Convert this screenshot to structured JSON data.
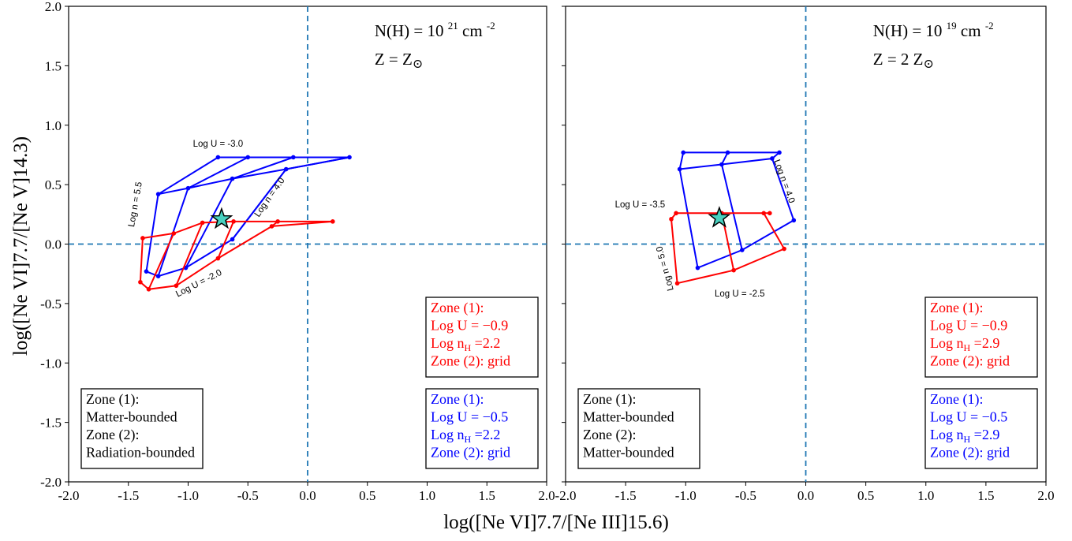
{
  "chart_data": [
    {
      "type": "line",
      "xlabel": "log([Ne VI]7.7/[Ne III]15.6)",
      "ylabel": "log([Ne VI]7.7/[Ne V]14.3)",
      "xlim": [
        -2.0,
        2.0
      ],
      "ylim": [
        -2.0,
        2.0
      ],
      "xticks": [
        -2.0,
        -1.5,
        -1.0,
        -0.5,
        0.0,
        0.5,
        1.0,
        1.5,
        2.0
      ],
      "yticks": [
        -2.0,
        -1.5,
        -1.0,
        -0.5,
        0.0,
        0.5,
        1.0,
        1.5,
        2.0
      ],
      "xtick_labels": [
        "-2.0",
        "-1.5",
        "-1.0",
        "-0.5",
        "0.0",
        "0.5",
        "1.0",
        "1.5",
        "2.0"
      ],
      "ytick_labels": [
        "-2.0",
        "-1.5",
        "-1.0",
        "-0.5",
        "0.0",
        "0.5",
        "1.0",
        "1.5",
        "2.0"
      ],
      "reference_lines": {
        "x": 0.0,
        "y": 0.0,
        "style": "dashed",
        "color": "#1f77b4"
      },
      "header": {
        "nh_prefix": "N(H) = 10",
        "nh_exp": "21",
        "nh_unit": "cm",
        "nh_unit_exp": "-2",
        "z_text": "Z = Z",
        "z_symbol": "⊙"
      },
      "series": [
        {
          "color": "#0000ff",
          "points": [
            [
              -0.75,
              0.73
            ],
            [
              -0.5,
              0.73
            ],
            [
              -0.12,
              0.73
            ],
            [
              0.35,
              0.73
            ],
            [
              -1.25,
              0.42
            ],
            [
              -1.0,
              0.47
            ],
            [
              -0.63,
              0.55
            ],
            [
              -0.18,
              0.63
            ],
            [
              -1.35,
              -0.23
            ],
            [
              -1.25,
              -0.27
            ],
            [
              -1.02,
              -0.2
            ],
            [
              -0.63,
              0.04
            ]
          ],
          "rows": [
            [
              [
                -0.75,
                0.73
              ],
              [
                -0.5,
                0.73
              ],
              [
                -0.12,
                0.73
              ],
              [
                0.35,
                0.73
              ]
            ],
            [
              [
                -1.25,
                0.42
              ],
              [
                -1.0,
                0.47
              ],
              [
                -0.63,
                0.55
              ],
              [
                -0.18,
                0.63
              ],
              [
                0.35,
                0.73
              ]
            ],
            [
              [
                -1.35,
                -0.23
              ],
              [
                -1.25,
                -0.27
              ],
              [
                -1.02,
                -0.2
              ],
              [
                -0.63,
                0.04
              ],
              [
                -0.18,
                0.63
              ]
            ]
          ],
          "cols": [
            [
              [
                -1.35,
                -0.23
              ],
              [
                -1.25,
                0.42
              ],
              [
                -0.75,
                0.73
              ]
            ],
            [
              [
                -1.25,
                -0.27
              ],
              [
                -1.0,
                0.47
              ],
              [
                -0.5,
                0.73
              ]
            ],
            [
              [
                -1.02,
                -0.2
              ],
              [
                -0.63,
                0.55
              ],
              [
                -0.12,
                0.73
              ]
            ],
            [
              [
                -0.63,
                0.04
              ],
              [
                -0.18,
                0.63
              ],
              [
                0.35,
                0.73
              ]
            ]
          ]
        },
        {
          "color": "#ff0000",
          "points": [
            [
              -1.38,
              0.05
            ],
            [
              -1.12,
              0.09
            ],
            [
              -0.88,
              0.18
            ],
            [
              -0.62,
              0.19
            ],
            [
              -0.25,
              0.19
            ],
            [
              0.21,
              0.19
            ],
            [
              -1.4,
              -0.32
            ],
            [
              -1.33,
              -0.38
            ],
            [
              -1.1,
              -0.35
            ],
            [
              -0.75,
              -0.12
            ],
            [
              -0.3,
              0.15
            ]
          ],
          "rows": [
            [
              [
                -1.38,
                0.05
              ],
              [
                -1.12,
                0.09
              ],
              [
                -0.88,
                0.18
              ],
              [
                -0.62,
                0.19
              ],
              [
                -0.25,
                0.19
              ],
              [
                0.21,
                0.19
              ]
            ],
            [
              [
                -1.4,
                -0.32
              ],
              [
                -1.33,
                -0.38
              ],
              [
                -1.1,
                -0.35
              ],
              [
                -0.75,
                -0.12
              ],
              [
                -0.3,
                0.15
              ],
              [
                0.21,
                0.19
              ]
            ]
          ],
          "cols": [
            [
              [
                -1.4,
                -0.32
              ],
              [
                -1.38,
                0.05
              ]
            ],
            [
              [
                -1.33,
                -0.38
              ],
              [
                -1.12,
                0.09
              ]
            ],
            [
              [
                -1.1,
                -0.35
              ],
              [
                -0.88,
                0.18
              ]
            ],
            [
              [
                -0.75,
                -0.12
              ],
              [
                -0.62,
                0.19
              ]
            ],
            [
              [
                -0.3,
                0.15
              ],
              [
                -0.25,
                0.19
              ]
            ]
          ]
        }
      ],
      "star": {
        "x": -0.72,
        "y": 0.21,
        "color": "#48d1c0"
      },
      "annotations": [
        {
          "text": "Log U = -3.0",
          "x": -0.75,
          "y": 0.82,
          "rotate": 0
        },
        {
          "text": "Log U = -2.0",
          "x": -0.9,
          "y": -0.35,
          "rotate": -27
        },
        {
          "text": "Log n  = 5.5",
          "x": -1.42,
          "y": 0.33,
          "rotate": -80
        },
        {
          "text": "Log n = 4.0",
          "x": -0.3,
          "y": 0.38,
          "rotate": -55
        }
      ],
      "legend_boxes": [
        {
          "position": "lower-left",
          "color": "#000000",
          "lines": [
            "Zone (1):",
            "Matter-bounded",
            "Zone (2):",
            "Radiation-bounded"
          ]
        },
        {
          "position": "center-right",
          "color": "#ff0000",
          "lines": [
            "Zone (1):",
            "Log U = −0.9",
            "Log n|H| =2.2",
            "Zone (2): grid"
          ]
        },
        {
          "position": "lower-right",
          "color": "#0000ff",
          "lines": [
            "Zone (1):",
            "Log U = −0.5",
            "Log n|H| =2.2",
            "Zone (2): grid"
          ]
        }
      ]
    },
    {
      "type": "line",
      "xlim": [
        -2.0,
        2.0
      ],
      "ylim": [
        -2.0,
        2.0
      ],
      "xticks": [
        -2.0,
        -1.5,
        -1.0,
        -0.5,
        0.0,
        0.5,
        1.0,
        1.5,
        2.0
      ],
      "yticks": [
        -2.0,
        -1.5,
        -1.0,
        -0.5,
        0.0,
        0.5,
        1.0,
        1.5,
        2.0
      ],
      "xtick_labels": [
        "-2.0",
        "-1.5",
        "-1.0",
        "-0.5",
        "0.0",
        "0.5",
        "1.0",
        "1.5",
        "2.0"
      ],
      "reference_lines": {
        "x": 0.0,
        "y": 0.0,
        "style": "dashed",
        "color": "#1f77b4"
      },
      "header": {
        "nh_prefix": "N(H) = 10",
        "nh_exp": "19",
        "nh_unit": "cm",
        "nh_unit_exp": "-2",
        "z_text": "Z = 2 Z",
        "z_symbol": "⊙"
      },
      "series": [
        {
          "color": "#0000ff",
          "points": [
            [
              -1.02,
              0.77
            ],
            [
              -0.65,
              0.77
            ],
            [
              -0.22,
              0.77
            ],
            [
              -1.05,
              0.63
            ],
            [
              -0.7,
              0.67
            ],
            [
              -0.28,
              0.72
            ],
            [
              -0.9,
              -0.2
            ],
            [
              -0.53,
              -0.05
            ],
            [
              -0.1,
              0.2
            ]
          ],
          "rows": [
            [
              [
                -1.05,
                0.63
              ],
              [
                -1.02,
                0.77
              ],
              [
                -0.65,
                0.77
              ],
              [
                -0.22,
                0.77
              ]
            ],
            [
              [
                -1.05,
                0.63
              ],
              [
                -0.7,
                0.67
              ],
              [
                -0.28,
                0.72
              ],
              [
                -0.22,
                0.77
              ]
            ],
            [
              [
                -0.9,
                -0.2
              ],
              [
                -0.53,
                -0.05
              ],
              [
                -0.1,
                0.2
              ]
            ]
          ],
          "cols": [
            [
              [
                -1.05,
                0.63
              ],
              [
                -0.9,
                -0.2
              ]
            ],
            [
              [
                -0.65,
                0.77
              ],
              [
                -0.7,
                0.67
              ],
              [
                -0.53,
                -0.05
              ]
            ],
            [
              [
                -0.28,
                0.72
              ],
              [
                -0.1,
                0.2
              ]
            ]
          ]
        },
        {
          "color": "#ff0000",
          "points": [
            [
              -1.08,
              0.26
            ],
            [
              -0.7,
              0.26
            ],
            [
              -0.35,
              0.26
            ],
            [
              -0.3,
              0.26
            ],
            [
              -1.12,
              0.21
            ],
            [
              -1.07,
              -0.33
            ],
            [
              -0.6,
              -0.22
            ],
            [
              -0.18,
              -0.04
            ]
          ],
          "rows": [
            [
              [
                -1.12,
                0.21
              ],
              [
                -1.08,
                0.26
              ],
              [
                -0.7,
                0.26
              ],
              [
                -0.35,
                0.26
              ],
              [
                -0.3,
                0.26
              ]
            ],
            [
              [
                -1.07,
                -0.33
              ],
              [
                -0.6,
                -0.22
              ],
              [
                -0.18,
                -0.04
              ]
            ]
          ],
          "cols": [
            [
              [
                -1.12,
                0.21
              ],
              [
                -1.07,
                -0.33
              ]
            ],
            [
              [
                -0.7,
                0.26
              ],
              [
                -0.6,
                -0.22
              ]
            ],
            [
              [
                -0.35,
                0.26
              ],
              [
                -0.18,
                -0.04
              ]
            ]
          ]
        }
      ],
      "star": {
        "x": -0.72,
        "y": 0.22,
        "color": "#48d1c0"
      },
      "annotations": [
        {
          "text": "Log U = -3.5",
          "x": -1.38,
          "y": 0.31,
          "rotate": 0
        },
        {
          "text": "Log U = -2.5",
          "x": -0.55,
          "y": -0.44,
          "rotate": 0
        },
        {
          "text": "Log n = 4.0",
          "x": -0.2,
          "y": 0.52,
          "rotate": 70
        },
        {
          "text": "Log n = 5.0",
          "x": -1.15,
          "y": -0.2,
          "rotate": -105
        }
      ],
      "legend_boxes": [
        {
          "position": "lower-left",
          "color": "#000000",
          "lines": [
            "Zone (1):",
            "Matter-bounded",
            "Zone (2):",
            "Matter-bounded"
          ]
        },
        {
          "position": "center-right",
          "color": "#ff0000",
          "lines": [
            "Zone (1):",
            "Log U = −0.9",
            "Log n|H| =2.9",
            "Zone (2): grid"
          ]
        },
        {
          "position": "lower-right",
          "color": "#0000ff",
          "lines": [
            "Zone (1):",
            "Log U = −0.5",
            "Log n|H| =2.9",
            "Zone (2): grid"
          ]
        }
      ]
    }
  ]
}
